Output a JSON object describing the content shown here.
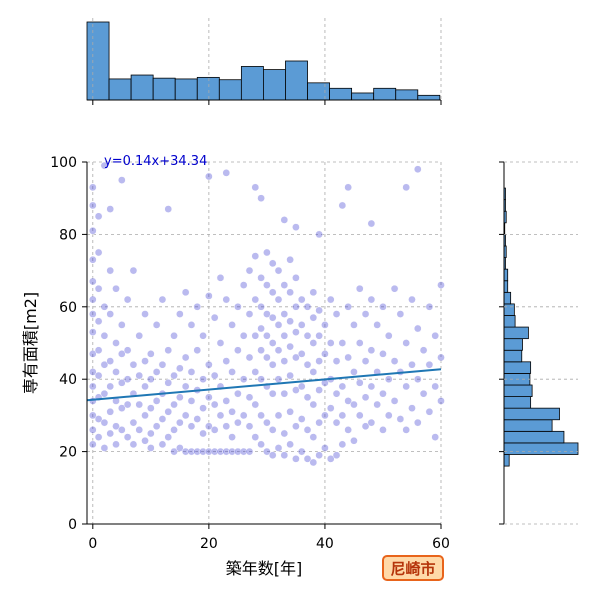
{
  "badge": {
    "label": "尼崎市"
  },
  "chart_data": {
    "type": "scatter",
    "regression_label": "y=0.14x+34.34",
    "regression": {
      "slope": 0.14,
      "intercept": 34.34
    },
    "xlabel": "築年数[年]",
    "ylabel": "専有面積[m2]",
    "xlim": [
      -1,
      60
    ],
    "ylim": [
      0,
      100
    ],
    "xticks": [
      "0",
      "20",
      "40",
      "60"
    ],
    "yticks": [
      "0",
      "20",
      "40",
      "60",
      "80",
      "100"
    ],
    "grid": true,
    "point_color": "#3a3ad0",
    "line_color": "#1f77b4",
    "hist_color": "#5b9bd5",
    "top_histogram": {
      "bin_start": -1,
      "bin_width": 3.8,
      "counts": [
        1.0,
        0.27,
        0.32,
        0.28,
        0.27,
        0.29,
        0.26,
        0.43,
        0.39,
        0.5,
        0.22,
        0.15,
        0.09,
        0.15,
        0.13,
        0.06
      ]
    },
    "right_histogram": {
      "bin_start": 16,
      "bin_width": 3.2,
      "counts": [
        0.07,
        1.0,
        0.81,
        0.65,
        0.75,
        0.36,
        0.38,
        0.35,
        0.36,
        0.24,
        0.25,
        0.33,
        0.15,
        0.14,
        0.09,
        0.05,
        0.05,
        0.02,
        0.03,
        0.02,
        0.01,
        0.03,
        0.02,
        0.02
      ]
    },
    "points": [
      [
        0,
        93
      ],
      [
        0,
        88
      ],
      [
        0,
        81
      ],
      [
        0,
        73
      ],
      [
        0,
        67
      ],
      [
        0,
        62
      ],
      [
        0,
        58
      ],
      [
        0,
        53
      ],
      [
        0,
        47
      ],
      [
        0,
        42
      ],
      [
        0,
        38
      ],
      [
        0,
        34
      ],
      [
        0,
        30
      ],
      [
        0,
        26
      ],
      [
        0,
        22
      ],
      [
        1,
        85
      ],
      [
        1,
        75
      ],
      [
        1,
        65
      ],
      [
        1,
        56
      ],
      [
        1,
        48
      ],
      [
        1,
        41
      ],
      [
        1,
        35
      ],
      [
        1,
        29
      ],
      [
        1,
        24
      ],
      [
        2,
        99
      ],
      [
        2,
        60
      ],
      [
        2,
        52
      ],
      [
        2,
        44
      ],
      [
        2,
        36
      ],
      [
        2,
        28
      ],
      [
        2,
        21
      ],
      [
        3,
        87
      ],
      [
        3,
        70
      ],
      [
        3,
        58
      ],
      [
        3,
        45
      ],
      [
        3,
        38
      ],
      [
        3,
        31
      ],
      [
        3,
        25
      ],
      [
        4,
        65
      ],
      [
        4,
        50
      ],
      [
        4,
        42
      ],
      [
        4,
        34
      ],
      [
        4,
        27
      ],
      [
        4,
        22
      ],
      [
        5,
        95
      ],
      [
        5,
        55
      ],
      [
        5,
        47
      ],
      [
        5,
        39
      ],
      [
        5,
        32
      ],
      [
        5,
        26
      ],
      [
        6,
        62
      ],
      [
        6,
        48
      ],
      [
        6,
        40
      ],
      [
        6,
        33
      ],
      [
        6,
        24
      ],
      [
        7,
        70
      ],
      [
        7,
        44
      ],
      [
        7,
        36
      ],
      [
        7,
        28
      ],
      [
        7,
        22
      ],
      [
        8,
        52
      ],
      [
        8,
        41
      ],
      [
        8,
        33
      ],
      [
        8,
        26
      ],
      [
        9,
        58
      ],
      [
        9,
        45
      ],
      [
        9,
        38
      ],
      [
        9,
        30
      ],
      [
        9,
        23
      ],
      [
        10,
        47
      ],
      [
        10,
        40
      ],
      [
        10,
        32
      ],
      [
        10,
        25
      ],
      [
        10,
        21
      ],
      [
        11,
        55
      ],
      [
        11,
        42
      ],
      [
        11,
        34
      ],
      [
        11,
        27
      ],
      [
        12,
        62
      ],
      [
        12,
        44
      ],
      [
        12,
        36
      ],
      [
        12,
        29
      ],
      [
        12,
        22
      ],
      [
        13,
        87
      ],
      [
        13,
        48
      ],
      [
        13,
        39
      ],
      [
        13,
        31
      ],
      [
        13,
        24
      ],
      [
        14,
        52
      ],
      [
        14,
        41
      ],
      [
        14,
        33
      ],
      [
        14,
        26
      ],
      [
        14,
        20
      ],
      [
        15,
        58
      ],
      [
        15,
        43
      ],
      [
        15,
        35
      ],
      [
        15,
        28
      ],
      [
        15,
        21
      ],
      [
        16,
        64
      ],
      [
        16,
        46
      ],
      [
        16,
        38
      ],
      [
        16,
        30
      ],
      [
        16,
        20
      ],
      [
        17,
        55
      ],
      [
        17,
        42
      ],
      [
        17,
        34
      ],
      [
        17,
        27
      ],
      [
        17,
        20
      ],
      [
        18,
        60
      ],
      [
        18,
        48
      ],
      [
        18,
        37
      ],
      [
        18,
        29
      ],
      [
        18,
        20
      ],
      [
        19,
        52
      ],
      [
        19,
        40
      ],
      [
        19,
        32
      ],
      [
        19,
        25
      ],
      [
        19,
        20
      ],
      [
        20,
        96
      ],
      [
        20,
        63
      ],
      [
        20,
        44
      ],
      [
        20,
        35
      ],
      [
        20,
        27
      ],
      [
        20,
        20
      ],
      [
        21,
        57
      ],
      [
        21,
        41
      ],
      [
        21,
        33
      ],
      [
        21,
        26
      ],
      [
        21,
        20
      ],
      [
        22,
        68
      ],
      [
        22,
        50
      ],
      [
        22,
        38
      ],
      [
        22,
        30
      ],
      [
        22,
        20
      ],
      [
        23,
        97
      ],
      [
        23,
        62
      ],
      [
        23,
        45
      ],
      [
        23,
        34
      ],
      [
        23,
        27
      ],
      [
        23,
        20
      ],
      [
        24,
        55
      ],
      [
        24,
        42
      ],
      [
        24,
        31
      ],
      [
        24,
        24
      ],
      [
        24,
        20
      ],
      [
        25,
        60
      ],
      [
        25,
        48
      ],
      [
        25,
        36
      ],
      [
        25,
        28
      ],
      [
        25,
        20
      ],
      [
        26,
        66
      ],
      [
        26,
        52
      ],
      [
        26,
        40
      ],
      [
        26,
        30
      ],
      [
        26,
        20
      ],
      [
        27,
        70
      ],
      [
        27,
        58
      ],
      [
        27,
        46
      ],
      [
        27,
        35
      ],
      [
        27,
        27
      ],
      [
        27,
        20
      ],
      [
        28,
        93
      ],
      [
        28,
        74
      ],
      [
        28,
        62
      ],
      [
        28,
        52
      ],
      [
        28,
        42
      ],
      [
        28,
        33
      ],
      [
        28,
        24
      ],
      [
        29,
        90
      ],
      [
        29,
        68
      ],
      [
        29,
        60
      ],
      [
        29,
        54
      ],
      [
        29,
        48
      ],
      [
        29,
        40
      ],
      [
        29,
        30
      ],
      [
        29,
        22
      ],
      [
        30,
        75
      ],
      [
        30,
        66
      ],
      [
        30,
        58
      ],
      [
        30,
        52
      ],
      [
        30,
        46
      ],
      [
        30,
        38
      ],
      [
        30,
        28
      ],
      [
        30,
        20
      ],
      [
        31,
        72
      ],
      [
        31,
        64
      ],
      [
        31,
        57
      ],
      [
        31,
        50
      ],
      [
        31,
        44
      ],
      [
        31,
        36
      ],
      [
        31,
        26
      ],
      [
        31,
        19
      ],
      [
        32,
        70
      ],
      [
        32,
        62
      ],
      [
        32,
        55
      ],
      [
        32,
        48
      ],
      [
        32,
        40
      ],
      [
        32,
        30
      ],
      [
        32,
        21
      ],
      [
        33,
        84
      ],
      [
        33,
        66
      ],
      [
        33,
        58
      ],
      [
        33,
        52
      ],
      [
        33,
        45
      ],
      [
        33,
        36
      ],
      [
        33,
        25
      ],
      [
        33,
        19
      ],
      [
        34,
        73
      ],
      [
        34,
        64
      ],
      [
        34,
        56
      ],
      [
        34,
        49
      ],
      [
        34,
        41
      ],
      [
        34,
        31
      ],
      [
        34,
        22
      ],
      [
        35,
        82
      ],
      [
        35,
        68
      ],
      [
        35,
        60
      ],
      [
        35,
        53
      ],
      [
        35,
        46
      ],
      [
        35,
        37
      ],
      [
        35,
        27
      ],
      [
        35,
        18
      ],
      [
        36,
        62
      ],
      [
        36,
        55
      ],
      [
        36,
        47
      ],
      [
        36,
        38
      ],
      [
        36,
        29
      ],
      [
        36,
        20
      ],
      [
        37,
        60
      ],
      [
        37,
        52
      ],
      [
        37,
        44
      ],
      [
        37,
        35
      ],
      [
        37,
        26
      ],
      [
        37,
        18
      ],
      [
        38,
        64
      ],
      [
        38,
        57
      ],
      [
        38,
        50
      ],
      [
        38,
        42
      ],
      [
        38,
        33
      ],
      [
        38,
        24
      ],
      [
        38,
        17
      ],
      [
        39,
        80
      ],
      [
        39,
        59
      ],
      [
        39,
        52
      ],
      [
        39,
        45
      ],
      [
        39,
        37
      ],
      [
        39,
        28
      ],
      [
        39,
        19
      ],
      [
        40,
        55
      ],
      [
        40,
        47
      ],
      [
        40,
        39
      ],
      [
        40,
        30
      ],
      [
        40,
        21
      ],
      [
        41,
        62
      ],
      [
        41,
        50
      ],
      [
        41,
        40
      ],
      [
        41,
        32
      ],
      [
        41,
        18
      ],
      [
        42,
        58
      ],
      [
        42,
        45
      ],
      [
        42,
        36
      ],
      [
        42,
        28
      ],
      [
        42,
        19
      ],
      [
        43,
        88
      ],
      [
        43,
        50
      ],
      [
        43,
        38
      ],
      [
        43,
        30
      ],
      [
        43,
        22
      ],
      [
        44,
        93
      ],
      [
        44,
        60
      ],
      [
        44,
        46
      ],
      [
        44,
        34
      ],
      [
        44,
        26
      ],
      [
        45,
        55
      ],
      [
        45,
        42
      ],
      [
        45,
        33
      ],
      [
        45,
        23
      ],
      [
        46,
        65
      ],
      [
        46,
        50
      ],
      [
        46,
        39
      ],
      [
        46,
        30
      ],
      [
        47,
        58
      ],
      [
        47,
        45
      ],
      [
        47,
        35
      ],
      [
        47,
        27
      ],
      [
        48,
        83
      ],
      [
        48,
        62
      ],
      [
        48,
        48
      ],
      [
        48,
        38
      ],
      [
        48,
        28
      ],
      [
        49,
        55
      ],
      [
        49,
        42
      ],
      [
        49,
        33
      ],
      [
        50,
        60
      ],
      [
        50,
        47
      ],
      [
        50,
        36
      ],
      [
        50,
        26
      ],
      [
        51,
        52
      ],
      [
        51,
        40
      ],
      [
        51,
        30
      ],
      [
        52,
        65
      ],
      [
        52,
        45
      ],
      [
        52,
        34
      ],
      [
        53,
        58
      ],
      [
        53,
        42
      ],
      [
        53,
        29
      ],
      [
        54,
        93
      ],
      [
        54,
        50
      ],
      [
        54,
        38
      ],
      [
        54,
        26
      ],
      [
        55,
        62
      ],
      [
        55,
        44
      ],
      [
        55,
        32
      ],
      [
        56,
        98
      ],
      [
        56,
        54
      ],
      [
        56,
        40
      ],
      [
        56,
        28
      ],
      [
        57,
        48
      ],
      [
        57,
        36
      ],
      [
        58,
        60
      ],
      [
        58,
        44
      ],
      [
        58,
        31
      ],
      [
        59,
        52
      ],
      [
        59,
        38
      ],
      [
        59,
        24
      ],
      [
        60,
        66
      ],
      [
        60,
        46
      ],
      [
        60,
        34
      ]
    ]
  }
}
